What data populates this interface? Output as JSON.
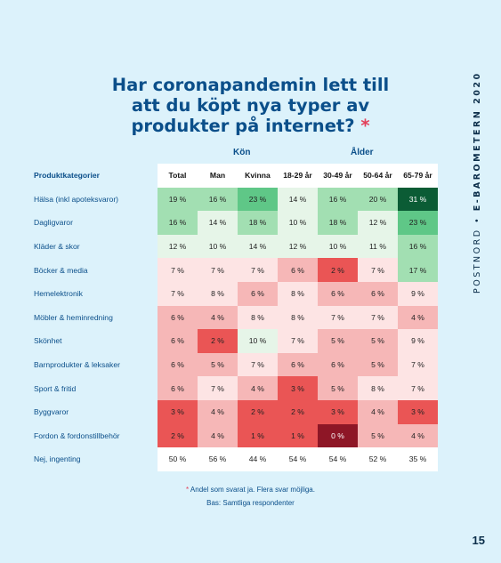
{
  "title": {
    "lines": [
      "Har coronapandemin lett till",
      "att du köpt nya typer av",
      "produkter på internet?"
    ],
    "asterisk": "*"
  },
  "groups": {
    "gender": "Kön",
    "age": "Ålder"
  },
  "category_header": "Produktkategorier",
  "columns": [
    "Total",
    "Man",
    "Kvinna",
    "18-29 år",
    "30-49 år",
    "50-64 år",
    "65-79 år"
  ],
  "rows": [
    {
      "label": "Hälsa (inkl apoteksvaror)",
      "values": [
        "19 %",
        "16 %",
        "23 %",
        "14 %",
        "16 %",
        "20 %",
        "31 %"
      ],
      "colors": [
        "#a2dfb2",
        "#a2dfb2",
        "#5fc787",
        "#e6f5e8",
        "#a2dfb2",
        "#a2dfb2",
        "#0b5c35"
      ]
    },
    {
      "label": "Dagligvaror",
      "values": [
        "16 %",
        "14 %",
        "18 %",
        "10 %",
        "18 %",
        "12 %",
        "23 %"
      ],
      "colors": [
        "#a2dfb2",
        "#e6f5e8",
        "#a2dfb2",
        "#e6f5e8",
        "#a2dfb2",
        "#e6f5e8",
        "#5fc787"
      ]
    },
    {
      "label": "Kläder & skor",
      "values": [
        "12 %",
        "10 %",
        "14 %",
        "12 %",
        "10 %",
        "11 %",
        "16 %"
      ],
      "colors": [
        "#e6f5e8",
        "#e6f5e8",
        "#e6f5e8",
        "#e6f5e8",
        "#e6f5e8",
        "#e6f5e8",
        "#a2dfb2"
      ]
    },
    {
      "label": "Böcker & media",
      "values": [
        "7 %",
        "7 %",
        "7 %",
        "6 %",
        "2 %",
        "7 %",
        "17 %"
      ],
      "colors": [
        "#fde4e4",
        "#fde4e4",
        "#fde4e4",
        "#f6b7b7",
        "#ea5555",
        "#fde4e4",
        "#a2dfb2"
      ]
    },
    {
      "label": "Hemelektronik",
      "values": [
        "7 %",
        "8 %",
        "6 %",
        "8 %",
        "6 %",
        "6 %",
        "9 %"
      ],
      "colors": [
        "#fde4e4",
        "#fde4e4",
        "#f6b7b7",
        "#fde4e4",
        "#f6b7b7",
        "#f6b7b7",
        "#fde4e4"
      ]
    },
    {
      "label": "Möbler & heminredning",
      "values": [
        "6 %",
        "4 %",
        "8 %",
        "8 %",
        "7 %",
        "7 %",
        "4 %"
      ],
      "colors": [
        "#f6b7b7",
        "#f6b7b7",
        "#fde4e4",
        "#fde4e4",
        "#fde4e4",
        "#fde4e4",
        "#f6b7b7"
      ]
    },
    {
      "label": "Skönhet",
      "values": [
        "6 %",
        "2 %",
        "10 %",
        "7 %",
        "5 %",
        "5 %",
        "9 %"
      ],
      "colors": [
        "#f6b7b7",
        "#ea5555",
        "#e6f5e8",
        "#fde4e4",
        "#f6b7b7",
        "#f6b7b7",
        "#fde4e4"
      ]
    },
    {
      "label": "Barnprodukter & leksaker",
      "values": [
        "6 %",
        "5 %",
        "7 %",
        "6 %",
        "6 %",
        "5 %",
        "7 %"
      ],
      "colors": [
        "#f6b7b7",
        "#f6b7b7",
        "#fde4e4",
        "#f6b7b7",
        "#f6b7b7",
        "#f6b7b7",
        "#fde4e4"
      ]
    },
    {
      "label": "Sport & fritid",
      "values": [
        "6 %",
        "7 %",
        "4 %",
        "3 %",
        "5 %",
        "8 %",
        "7 %"
      ],
      "colors": [
        "#f6b7b7",
        "#fde4e4",
        "#f6b7b7",
        "#ea5555",
        "#f6b7b7",
        "#fde4e4",
        "#fde4e4"
      ]
    },
    {
      "label": "Byggvaror",
      "values": [
        "3 %",
        "4 %",
        "2 %",
        "2 %",
        "3 %",
        "4 %",
        "3 %"
      ],
      "colors": [
        "#ea5555",
        "#f6b7b7",
        "#ea5555",
        "#ea5555",
        "#ea5555",
        "#f6b7b7",
        "#ea5555"
      ]
    },
    {
      "label": "Fordon & fordonstillbehör",
      "values": [
        "2 %",
        "4 %",
        "1 %",
        "1 %",
        "0 %",
        "5 %",
        "4 %"
      ],
      "colors": [
        "#ea5555",
        "#f6b7b7",
        "#ea5555",
        "#ea5555",
        "#8e1626",
        "#f6b7b7",
        "#f6b7b7"
      ]
    },
    {
      "label": "Nej, ingenting",
      "values": [
        "50 %",
        "56 %",
        "44 %",
        "54 %",
        "54 %",
        "52 %",
        "35 %"
      ],
      "colors": [
        "#ffffff",
        "#ffffff",
        "#ffffff",
        "#ffffff",
        "#ffffff",
        "#ffffff",
        "#ffffff"
      ]
    }
  ],
  "footnote": {
    "note_marker": "*",
    "note": "Andel som svarat ja. Flera svar möjliga.",
    "base": "Bas: Samtliga respondenter"
  },
  "sidebar": {
    "brand": "POSTNORD",
    "separator": "•",
    "publication": "E-BAROMETERN 2020"
  },
  "page_number": "15"
}
